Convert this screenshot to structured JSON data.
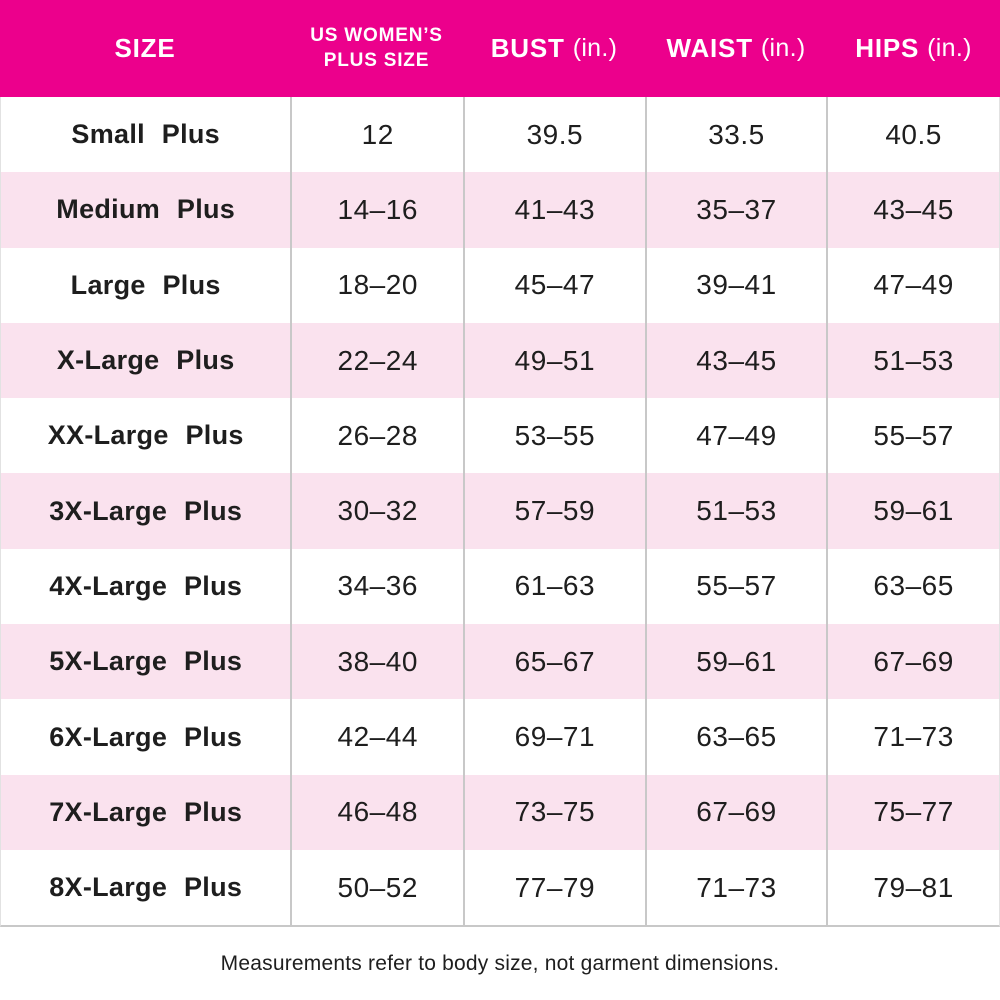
{
  "colors": {
    "header_background": "#EC008C",
    "header_text": "#FFFFFF",
    "row_alt_background": "#FAE2EE",
    "row_background": "#FFFFFF",
    "divider": "#C8C8C8",
    "body_text": "#1E1E1E"
  },
  "chart_data": {
    "type": "table",
    "title": "",
    "columns": [
      {
        "name": "SIZE",
        "unit": ""
      },
      {
        "name": "US WOMEN’S\nPLUS SIZE",
        "unit": ""
      },
      {
        "name": "BUST",
        "unit": "(in.)"
      },
      {
        "name": "WAIST",
        "unit": "(in.)"
      },
      {
        "name": "HIPS",
        "unit": "(in.)"
      }
    ],
    "rows": [
      {
        "size": "Small Plus",
        "us_plus_size": "12",
        "bust": "39.5",
        "waist": "33.5",
        "hips": "40.5"
      },
      {
        "size": "Medium Plus",
        "us_plus_size": "14–16",
        "bust": "41–43",
        "waist": "35–37",
        "hips": "43–45"
      },
      {
        "size": "Large Plus",
        "us_plus_size": "18–20",
        "bust": "45–47",
        "waist": "39–41",
        "hips": "47–49"
      },
      {
        "size": "X-Large Plus",
        "us_plus_size": "22–24",
        "bust": "49–51",
        "waist": "43–45",
        "hips": "51–53"
      },
      {
        "size": "XX-Large Plus",
        "us_plus_size": "26–28",
        "bust": "53–55",
        "waist": "47–49",
        "hips": "55–57"
      },
      {
        "size": "3X-Large Plus",
        "us_plus_size": "30–32",
        "bust": "57–59",
        "waist": "51–53",
        "hips": "59–61"
      },
      {
        "size": "4X-Large Plus",
        "us_plus_size": "34–36",
        "bust": "61–63",
        "waist": "55–57",
        "hips": "63–65"
      },
      {
        "size": "5X-Large Plus",
        "us_plus_size": "38–40",
        "bust": "65–67",
        "waist": "59–61",
        "hips": "67–69"
      },
      {
        "size": "6X-Large Plus",
        "us_plus_size": "42–44",
        "bust": "69–71",
        "waist": "63–65",
        "hips": "71–73"
      },
      {
        "size": "7X-Large Plus",
        "us_plus_size": "46–48",
        "bust": "73–75",
        "waist": "67–69",
        "hips": "75–77"
      },
      {
        "size": "8X-Large Plus",
        "us_plus_size": "50–52",
        "bust": "77–79",
        "waist": "71–73",
        "hips": "79–81"
      }
    ]
  },
  "footnote": "Measurements refer to body size, not garment dimensions."
}
